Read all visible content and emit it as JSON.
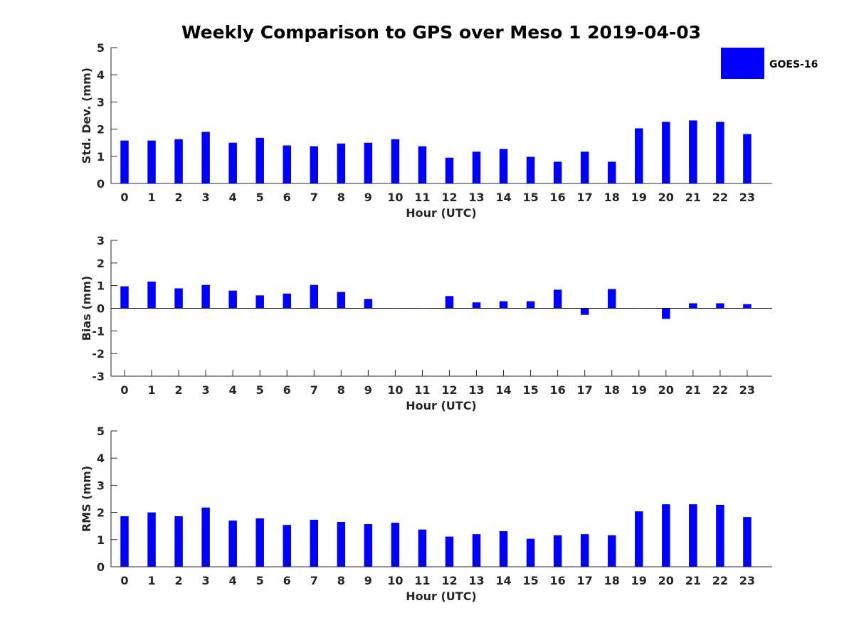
{
  "figure_title": "Weekly Comparison to GPS over Meso 1 2019-04-03",
  "legend": {
    "label": "GOES-16",
    "color": "#0000ff",
    "placement": "top-right"
  },
  "chart_data": [
    {
      "type": "bar",
      "name": "std-dev",
      "title": "",
      "xlabel": "Hour (UTC)",
      "ylabel": "Std. Dev. (mm)",
      "ylim": [
        0,
        5
      ],
      "yticks": [
        0,
        1,
        2,
        3,
        4,
        5
      ],
      "categories": [
        "0",
        "1",
        "2",
        "3",
        "4",
        "5",
        "6",
        "7",
        "8",
        "9",
        "10",
        "11",
        "12",
        "13",
        "14",
        "15",
        "16",
        "17",
        "18",
        "19",
        "20",
        "21",
        "22",
        "23"
      ],
      "series": [
        {
          "name": "GOES-16",
          "color": "#0000ff",
          "values": [
            1.58,
            1.58,
            1.63,
            1.9,
            1.5,
            1.68,
            1.4,
            1.37,
            1.47,
            1.5,
            1.63,
            1.37,
            0.95,
            1.17,
            1.27,
            0.98,
            0.8,
            1.17,
            0.8,
            2.03,
            2.27,
            2.32,
            2.27,
            1.82
          ]
        }
      ]
    },
    {
      "type": "bar",
      "name": "bias",
      "title": "",
      "xlabel": "Hour (UTC)",
      "ylabel": "Bias (mm)",
      "ylim": [
        -3,
        3
      ],
      "yticks": [
        -3,
        -2,
        -1,
        0,
        1,
        2,
        3
      ],
      "zero_line": true,
      "categories": [
        "0",
        "1",
        "2",
        "3",
        "4",
        "5",
        "6",
        "7",
        "8",
        "9",
        "10",
        "11",
        "12",
        "13",
        "14",
        "15",
        "16",
        "17",
        "18",
        "19",
        "20",
        "21",
        "22",
        "23"
      ],
      "series": [
        {
          "name": "GOES-16",
          "color": "#0000ff",
          "values": [
            0.97,
            1.18,
            0.88,
            1.03,
            0.78,
            0.57,
            0.65,
            1.03,
            0.72,
            0.41,
            0.0,
            0.0,
            0.54,
            0.26,
            0.31,
            0.31,
            0.82,
            -0.29,
            0.85,
            0.0,
            -0.47,
            0.22,
            0.22,
            0.18
          ]
        }
      ]
    },
    {
      "type": "bar",
      "name": "rms",
      "title": "",
      "xlabel": "Hour (UTC)",
      "ylabel": "RMS (mm)",
      "ylim": [
        0,
        5
      ],
      "yticks": [
        0,
        1,
        2,
        3,
        4,
        5
      ],
      "categories": [
        "0",
        "1",
        "2",
        "3",
        "4",
        "5",
        "6",
        "7",
        "8",
        "9",
        "10",
        "11",
        "12",
        "13",
        "14",
        "15",
        "16",
        "17",
        "18",
        "19",
        "20",
        "21",
        "22",
        "23"
      ],
      "series": [
        {
          "name": "GOES-16",
          "color": "#0000ff",
          "values": [
            1.86,
            2.0,
            1.86,
            2.18,
            1.7,
            1.78,
            1.54,
            1.73,
            1.65,
            1.57,
            1.62,
            1.37,
            1.11,
            1.2,
            1.31,
            1.03,
            1.16,
            1.2,
            1.16,
            2.04,
            2.3,
            2.3,
            2.28,
            1.83
          ]
        }
      ]
    }
  ]
}
